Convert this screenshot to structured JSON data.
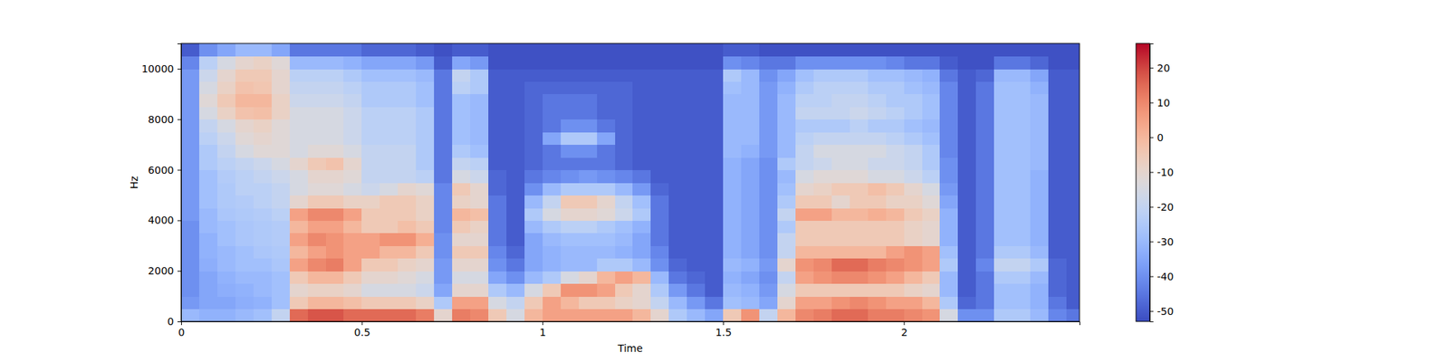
{
  "chart_data": {
    "type": "heatmap",
    "x_label": "Time",
    "y_label": "Hz",
    "xlim": [
      0,
      2.486
    ],
    "ylim": [
      0,
      11000
    ],
    "xticks": [
      0,
      0.5,
      1,
      1.5,
      2
    ],
    "yticks": [
      0,
      2000,
      4000,
      6000,
      8000,
      10000
    ],
    "colorbar": {
      "range": [
        -53,
        27
      ],
      "ticks": [
        -50,
        -40,
        -30,
        -20,
        -10,
        0,
        10,
        20
      ]
    },
    "x": [
      0,
      0.05,
      0.1,
      0.15,
      0.2,
      0.25,
      0.3,
      0.35,
      0.4,
      0.45,
      0.5,
      0.55,
      0.6,
      0.65,
      0.7,
      0.75,
      0.8,
      0.85,
      0.9,
      0.95,
      1,
      1.05,
      1.1,
      1.15,
      1.2,
      1.25,
      1.3,
      1.35,
      1.4,
      1.45,
      1.5,
      1.55,
      1.6,
      1.65,
      1.7,
      1.75,
      1.8,
      1.85,
      1.9,
      1.95,
      2,
      2.05,
      2.1,
      2.15,
      2.2,
      2.25,
      2.3,
      2.35,
      2.4,
      2.45
    ],
    "y": [
      0,
      500,
      1000,
      1500,
      2000,
      2500,
      3000,
      3500,
      4000,
      4500,
      5000,
      5500,
      6000,
      6500,
      7000,
      7500,
      8000,
      8500,
      9000,
      9500,
      10000,
      10500
    ],
    "values": [
      [
        -30,
        -38,
        -40,
        -40,
        -40,
        -40,
        -40,
        -40,
        -38,
        -38,
        -38,
        -38,
        -38,
        -38,
        -38,
        -38,
        -38,
        -38,
        -38,
        -38,
        -42,
        -50
      ],
      [
        -32,
        -35,
        -35,
        -35,
        -33,
        -32,
        -32,
        -30,
        -30,
        -28,
        -28,
        -28,
        -25,
        -25,
        -22,
        -20,
        -15,
        -12,
        -15,
        -18,
        -22,
        -40
      ],
      [
        -32,
        -35,
        -33,
        -32,
        -30,
        -30,
        -28,
        -28,
        -26,
        -25,
        -25,
        -24,
        -22,
        -20,
        -18,
        -15,
        -8,
        -5,
        -8,
        -10,
        -15,
        -35
      ],
      [
        -30,
        -33,
        -32,
        -30,
        -28,
        -28,
        -26,
        -26,
        -25,
        -24,
        -22,
        -22,
        -20,
        -15,
        -12,
        -10,
        -3,
        0,
        -3,
        -5,
        -10,
        -30
      ],
      [
        -28,
        -32,
        -30,
        -30,
        -28,
        -26,
        -25,
        -25,
        -24,
        -22,
        -22,
        -20,
        -18,
        -12,
        -10,
        -8,
        -2,
        0,
        -4,
        -5,
        -8,
        -30
      ],
      [
        -20,
        -28,
        -28,
        -28,
        -26,
        -25,
        -24,
        -24,
        -22,
        -20,
        -20,
        -18,
        -15,
        -12,
        -12,
        -12,
        -8,
        -8,
        -10,
        -10,
        -12,
        -35
      ],
      [
        15,
        -5,
        -10,
        -5,
        5,
        0,
        5,
        0,
        5,
        -10,
        -15,
        -15,
        -10,
        -15,
        -15,
        -15,
        -15,
        -18,
        -20,
        -22,
        -30,
        -45
      ],
      [
        18,
        0,
        -8,
        0,
        10,
        5,
        10,
        5,
        10,
        -5,
        -12,
        -10,
        -5,
        -12,
        -15,
        -15,
        -15,
        -18,
        -20,
        -22,
        -30,
        -45
      ],
      [
        18,
        0,
        -8,
        0,
        12,
        8,
        8,
        5,
        10,
        -5,
        -12,
        -10,
        -3,
        -12,
        -15,
        -15,
        -15,
        -18,
        -20,
        -22,
        -30,
        -45
      ],
      [
        15,
        -2,
        -10,
        -5,
        5,
        5,
        5,
        0,
        5,
        -8,
        -15,
        -12,
        -10,
        -15,
        -18,
        -18,
        -18,
        -20,
        -22,
        -25,
        -32,
        -45
      ],
      [
        15,
        -5,
        -15,
        -10,
        -5,
        5,
        5,
        -5,
        -5,
        -8,
        -18,
        -20,
        -20,
        -20,
        -22,
        -22,
        -22,
        -25,
        -25,
        -28,
        -35,
        -48
      ],
      [
        15,
        -5,
        -15,
        -10,
        -5,
        0,
        8,
        -5,
        -5,
        -5,
        -15,
        -20,
        -20,
        -20,
        -22,
        -22,
        -22,
        -25,
        -25,
        -28,
        -35,
        -48
      ],
      [
        15,
        -5,
        -15,
        -12,
        -8,
        0,
        8,
        -2,
        -5,
        -5,
        -10,
        -20,
        -20,
        -20,
        -22,
        -22,
        -22,
        -25,
        -25,
        -28,
        -35,
        -48
      ],
      [
        12,
        -8,
        -18,
        -15,
        -10,
        -5,
        2,
        -5,
        -8,
        -8,
        -12,
        -22,
        -25,
        -25,
        -25,
        -25,
        -25,
        -28,
        -28,
        -30,
        -38,
        -50
      ],
      [
        -10,
        -25,
        -35,
        -38,
        -38,
        -40,
        -40,
        -42,
        -42,
        -42,
        -42,
        -45,
        -45,
        -45,
        -45,
        -45,
        -45,
        -45,
        -45,
        -45,
        -50,
        -52
      ],
      [
        12,
        5,
        -10,
        -15,
        -10,
        -5,
        -10,
        -5,
        0,
        -8,
        -5,
        -15,
        -20,
        -25,
        -28,
        -28,
        -28,
        -28,
        -22,
        -20,
        -35,
        -50
      ],
      [
        10,
        5,
        -10,
        -15,
        -10,
        -5,
        -10,
        -8,
        -2,
        -10,
        -10,
        -18,
        -22,
        -28,
        -30,
        -30,
        -30,
        -30,
        -25,
        -25,
        -38,
        -50
      ],
      [
        -5,
        -15,
        -25,
        -35,
        -40,
        -42,
        -45,
        -45,
        -45,
        -45,
        -48,
        -48,
        -50,
        -50,
        -50,
        -50,
        -50,
        -50,
        -50,
        -50,
        -52,
        -52
      ],
      [
        -15,
        -20,
        -30,
        -40,
        -45,
        -48,
        -50,
        -50,
        -50,
        -50,
        -50,
        -50,
        -50,
        -50,
        -50,
        -50,
        -50,
        -50,
        -50,
        -50,
        -52,
        -52
      ],
      [
        0,
        -5,
        -15,
        -30,
        -35,
        -35,
        -35,
        -30,
        -25,
        -30,
        -40,
        -45,
        -48,
        -48,
        -48,
        -48,
        -48,
        -48,
        -48,
        -50,
        -52,
        -52
      ],
      [
        5,
        5,
        -5,
        -25,
        -32,
        -32,
        -30,
        -25,
        -15,
        -20,
        -30,
        -42,
        -45,
        -45,
        -35,
        -45,
        -45,
        -45,
        -48,
        -50,
        -52,
        -52
      ],
      [
        5,
        0,
        8,
        -15,
        -30,
        -30,
        -28,
        -22,
        -10,
        -5,
        -25,
        -40,
        -45,
        -40,
        -25,
        -40,
        -45,
        -45,
        -48,
        -50,
        -52,
        -52
      ],
      [
        5,
        -5,
        8,
        -10,
        -30,
        -30,
        -28,
        -22,
        -10,
        -5,
        -25,
        -38,
        -45,
        -40,
        -25,
        -40,
        -45,
        -45,
        -48,
        -50,
        -52,
        -52
      ],
      [
        5,
        -5,
        5,
        0,
        -25,
        -30,
        -28,
        -25,
        -12,
        -10,
        -25,
        -40,
        -45,
        -45,
        -35,
        -45,
        -48,
        -48,
        -48,
        -50,
        -52,
        -52
      ],
      [
        5,
        -8,
        -5,
        5,
        -25,
        -32,
        -30,
        -28,
        -18,
        -20,
        -30,
        -42,
        -48,
        -48,
        -48,
        -48,
        -48,
        -48,
        -48,
        -50,
        -52,
        -52
      ],
      [
        0,
        -10,
        -10,
        0,
        -30,
        -35,
        -35,
        -32,
        -25,
        -28,
        -38,
        -45,
        -50,
        -50,
        -50,
        -50,
        -50,
        -50,
        -50,
        -50,
        -52,
        -52
      ],
      [
        -10,
        -20,
        -25,
        -30,
        -40,
        -42,
        -45,
        -45,
        -45,
        -45,
        -48,
        -50,
        -50,
        -50,
        -50,
        -50,
        -50,
        -50,
        -50,
        -50,
        -52,
        -52
      ],
      [
        -25,
        -30,
        -38,
        -45,
        -48,
        -50,
        -50,
        -50,
        -50,
        -50,
        -50,
        -50,
        -50,
        -50,
        -50,
        -50,
        -50,
        -50,
        -50,
        -50,
        -52,
        -52
      ],
      [
        -30,
        -38,
        -45,
        -48,
        -50,
        -50,
        -50,
        -50,
        -50,
        -50,
        -50,
        -50,
        -50,
        -50,
        -50,
        -50,
        -50,
        -50,
        -50,
        -50,
        -52,
        -52
      ],
      [
        -35,
        -45,
        -50,
        -50,
        -50,
        -50,
        -50,
        -50,
        -50,
        -50,
        -50,
        -50,
        -50,
        -50,
        -50,
        -50,
        -50,
        -50,
        -50,
        -50,
        -52,
        -52
      ],
      [
        -5,
        -28,
        -30,
        -32,
        -30,
        -32,
        -32,
        -32,
        -32,
        -32,
        -32,
        -32,
        -32,
        -30,
        -30,
        -30,
        -30,
        -30,
        -28,
        -25,
        -40,
        -50
      ],
      [
        8,
        -30,
        -32,
        -35,
        -32,
        -35,
        -35,
        -35,
        -35,
        -35,
        -35,
        -35,
        -35,
        -32,
        -30,
        -30,
        -30,
        -30,
        -30,
        -30,
        -42,
        -50
      ],
      [
        -20,
        -35,
        -38,
        -40,
        -38,
        -40,
        -40,
        -40,
        -40,
        -40,
        -40,
        -40,
        -40,
        -38,
        -38,
        -38,
        -38,
        -38,
        -38,
        -40,
        -45,
        -52
      ],
      [
        0,
        -10,
        -15,
        -20,
        -10,
        -20,
        -20,
        -25,
        -20,
        -25,
        -28,
        -30,
        -25,
        -30,
        -30,
        -30,
        -30,
        -30,
        -32,
        -35,
        -45,
        -52
      ],
      [
        10,
        5,
        -5,
        5,
        8,
        0,
        -5,
        -5,
        5,
        -5,
        -10,
        -15,
        -20,
        -20,
        -22,
        -25,
        -20,
        -22,
        -25,
        -28,
        -40,
        -52
      ],
      [
        12,
        5,
        -5,
        8,
        10,
        0,
        -5,
        -5,
        5,
        -5,
        -8,
        -12,
        -18,
        -15,
        -20,
        -25,
        -20,
        -22,
        -22,
        -25,
        -40,
        -52
      ],
      [
        15,
        8,
        -5,
        10,
        15,
        0,
        -5,
        -5,
        0,
        -10,
        -5,
        -12,
        -15,
        -15,
        -20,
        -25,
        -20,
        -20,
        -22,
        -25,
        -40,
        -52
      ],
      [
        15,
        10,
        -5,
        10,
        15,
        0,
        -5,
        -5,
        0,
        -5,
        -5,
        -12,
        -15,
        -15,
        -20,
        -22,
        -18,
        -20,
        -22,
        -25,
        -40,
        -52
      ],
      [
        12,
        8,
        -5,
        8,
        12,
        0,
        -5,
        -5,
        2,
        -5,
        -2,
        -15,
        -18,
        -15,
        -20,
        -25,
        -20,
        -22,
        -25,
        -28,
        -40,
        -52
      ],
      [
        12,
        5,
        -5,
        5,
        10,
        5,
        -5,
        -5,
        0,
        -8,
        -5,
        -15,
        -18,
        -18,
        -22,
        -25,
        -22,
        -25,
        -25,
        -28,
        -42,
        -52
      ],
      [
        10,
        5,
        -8,
        0,
        8,
        8,
        -8,
        -8,
        -5,
        -8,
        -10,
        -18,
        -20,
        -20,
        -25,
        -28,
        -25,
        -25,
        -28,
        -30,
        -45,
        -52
      ],
      [
        8,
        0,
        -10,
        -5,
        5,
        5,
        -10,
        -10,
        -8,
        -12,
        -15,
        -22,
        -25,
        -25,
        -28,
        -30,
        -28,
        -28,
        -30,
        -32,
        -45,
        -52
      ],
      [
        -15,
        -25,
        -30,
        -30,
        -25,
        -28,
        -32,
        -32,
        -32,
        -35,
        -38,
        -40,
        -40,
        -42,
        -42,
        -42,
        -42,
        -42,
        -42,
        -45,
        -50,
        -52
      ],
      [
        -40,
        -48,
        -50,
        -50,
        -50,
        -50,
        -50,
        -50,
        -50,
        -50,
        -50,
        -50,
        -50,
        -50,
        -50,
        -50,
        -50,
        -50,
        -50,
        -50,
        -52,
        -52
      ],
      [
        -40,
        -45,
        -45,
        -45,
        -42,
        -45,
        -45,
        -45,
        -45,
        -45,
        -45,
        -45,
        -45,
        -45,
        -45,
        -45,
        -45,
        -45,
        -45,
        -48,
        -52,
        -52
      ],
      [
        -25,
        -28,
        -28,
        -25,
        -20,
        -25,
        -28,
        -28,
        -28,
        -28,
        -28,
        -28,
        -28,
        -28,
        -28,
        -28,
        -28,
        -28,
        -28,
        -30,
        -45,
        -52
      ],
      [
        -25,
        -28,
        -28,
        -25,
        -20,
        -25,
        -28,
        -28,
        -28,
        -28,
        -28,
        -28,
        -28,
        -28,
        -28,
        -28,
        -28,
        -28,
        -28,
        -30,
        -45,
        -52
      ],
      [
        -30,
        -32,
        -32,
        -30,
        -25,
        -30,
        -32,
        -32,
        -32,
        -32,
        -32,
        -32,
        -30,
        -30,
        -30,
        -30,
        -30,
        -30,
        -32,
        -35,
        -48,
        -52
      ],
      [
        -42,
        -45,
        -48,
        -48,
        -48,
        -50,
        -50,
        -50,
        -50,
        -50,
        -50,
        -50,
        -50,
        -50,
        -50,
        -50,
        -50,
        -50,
        -50,
        -50,
        -52,
        -52
      ],
      [
        -45,
        -50,
        -50,
        -50,
        -50,
        -50,
        -50,
        -50,
        -50,
        -50,
        -50,
        -50,
        -50,
        -50,
        -50,
        -50,
        -50,
        -50,
        -50,
        -50,
        -52,
        -52
      ]
    ]
  }
}
